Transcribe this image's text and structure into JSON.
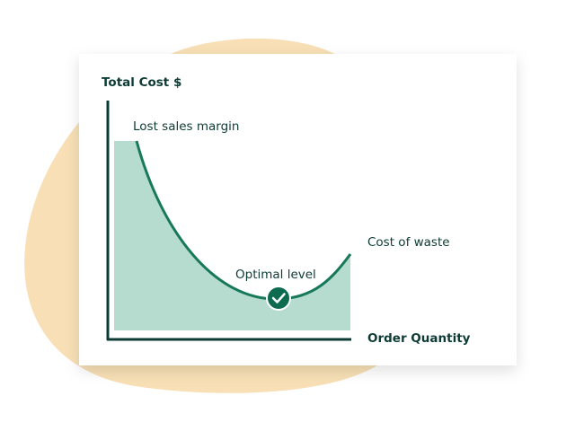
{
  "axes": {
    "y_label": "Total Cost $",
    "x_label": "Order Quantity"
  },
  "annotations": {
    "left": "Lost sales margin",
    "minimum": "Optimal level",
    "right": "Cost of waste"
  }
}
